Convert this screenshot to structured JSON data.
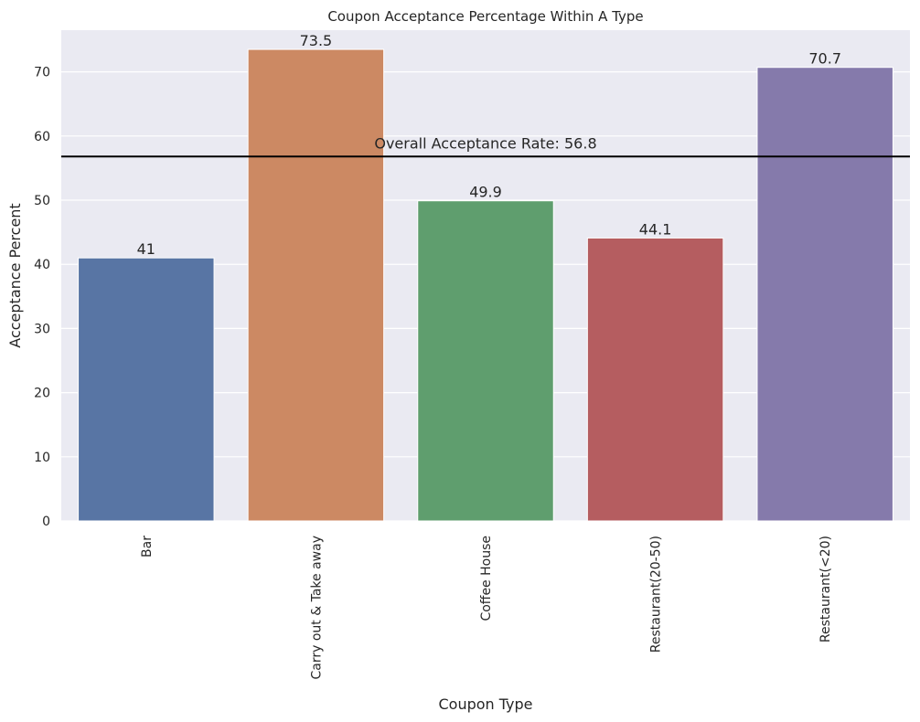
{
  "chart_data": {
    "type": "bar",
    "title": "Coupon Acceptance Percentage Within A Type",
    "xlabel": "Coupon Type",
    "ylabel": "Acceptance Percent",
    "categories": [
      "Bar",
      "Carry out & Take away",
      "Coffee House",
      "Restaurant(20-50)",
      "Restaurant(<20)"
    ],
    "values": [
      41,
      73.5,
      49.9,
      44.1,
      70.7
    ],
    "value_labels": [
      "41",
      "73.5",
      "49.9",
      "44.1",
      "70.7"
    ],
    "colors": [
      "#5875a4",
      "#cc8963",
      "#5f9e6e",
      "#b55d60",
      "#857aab"
    ],
    "ylim": [
      0,
      76.5
    ],
    "yticks": [
      0,
      10,
      20,
      30,
      40,
      50,
      60,
      70
    ],
    "grid": true,
    "background": "#eaeaf2",
    "reference_line": {
      "value": 56.8,
      "label": "Overall Acceptance Rate: 56.8",
      "color": "#000000"
    }
  }
}
